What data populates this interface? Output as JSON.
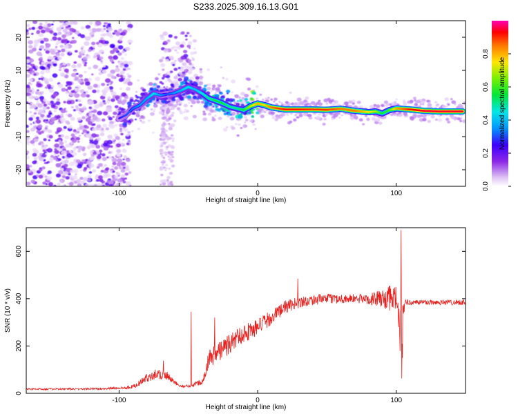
{
  "title": "S233.2025.309.16.13.G01",
  "colors": {
    "snr_line": "#e8201e",
    "frame": "#000000",
    "background": "#ffffff"
  },
  "chart_data": [
    {
      "type": "heatmap",
      "name": "spectrogram",
      "xlabel": "Height of straight line (km)",
      "ylabel": "Frequency (Hz)",
      "xlim": [
        -167,
        150
      ],
      "ylim": [
        -25,
        25
      ],
      "xticks": [
        -100,
        0,
        100
      ],
      "xtick_labels": [
        "-100",
        "0",
        "100"
      ],
      "yticks": [
        -20,
        -10,
        0,
        10,
        20
      ],
      "ytick_labels": [
        "-20",
        "-10",
        "0",
        "10",
        "20"
      ],
      "colorbar": {
        "label": "Normalized spectral amplitude",
        "range": [
          0,
          1
        ],
        "ticks": [
          0.0,
          0.2,
          0.4,
          0.6,
          0.8
        ],
        "tick_labels": [
          "0.0",
          "0.2",
          "0.4",
          "0.6",
          "0.8"
        ],
        "colormap": "rainbow (white-purple-blue-cyan-green-yellow-orange-red-magenta)"
      },
      "ridge": {
        "description": "dominant frequency track",
        "x": [
          -100,
          -95,
          -90,
          -85,
          -80,
          -75,
          -70,
          -65,
          -60,
          -55,
          -50,
          -45,
          -40,
          -35,
          -30,
          -25,
          -20,
          -15,
          -10,
          -5,
          0,
          5,
          10,
          20,
          30,
          40,
          50,
          60,
          70,
          80,
          85,
          90,
          95,
          100,
          110,
          120,
          130,
          140,
          148
        ],
        "y": [
          -4.5,
          -3.5,
          -1.5,
          -0.5,
          1.5,
          3.0,
          2.5,
          2.8,
          3.2,
          4.0,
          5.0,
          4.2,
          3.0,
          1.5,
          0.8,
          0.0,
          -1.0,
          -1.5,
          -2.0,
          -0.8,
          0.0,
          -0.5,
          -1.2,
          -1.8,
          -1.8,
          -1.8,
          -1.9,
          -1.6,
          -2.2,
          -2.6,
          -2.4,
          -3.0,
          -2.0,
          -1.5,
          -1.8,
          -2.2,
          -2.4,
          -2.4,
          -2.4
        ],
        "amplitude": [
          0.25,
          0.3,
          0.32,
          0.35,
          0.38,
          0.45,
          0.35,
          0.3,
          0.35,
          0.4,
          0.45,
          0.4,
          0.45,
          0.5,
          0.55,
          0.55,
          0.5,
          0.5,
          0.55,
          0.7,
          0.8,
          0.75,
          0.85,
          0.92,
          0.92,
          0.9,
          0.9,
          0.85,
          0.85,
          0.75,
          0.7,
          0.55,
          0.6,
          0.8,
          0.92,
          0.95,
          0.95,
          0.95,
          0.95
        ]
      }
    },
    {
      "type": "line",
      "name": "snr",
      "xlabel": "Height of straight line (km)",
      "ylabel": "SNR (10 * v/v)",
      "xlim": [
        -167,
        150
      ],
      "ylim": [
        0,
        700
      ],
      "xticks": [
        -100,
        0,
        100
      ],
      "xtick_labels": [
        "-100",
        "0",
        "100"
      ],
      "yticks": [
        0,
        200,
        400,
        600
      ],
      "ytick_labels": [
        "0",
        "200",
        "400",
        "600"
      ],
      "series": [
        {
          "name": "SNR",
          "x": [
            -167,
            -150,
            -130,
            -110,
            -100,
            -90,
            -85,
            -80,
            -75,
            -70,
            -65,
            -60,
            -55,
            -50,
            -45,
            -40,
            -37,
            -35,
            -30,
            -25,
            -20,
            -15,
            -10,
            -5,
            0,
            5,
            10,
            15,
            20,
            25,
            30,
            40,
            50,
            60,
            70,
            80,
            90,
            95,
            100,
            102,
            103,
            104,
            105,
            106,
            110,
            120,
            130,
            140,
            150
          ],
          "values": [
            18,
            18,
            18,
            20,
            22,
            28,
            45,
            65,
            80,
            82,
            70,
            45,
            30,
            30,
            40,
            50,
            110,
            150,
            170,
            190,
            210,
            235,
            255,
            265,
            280,
            300,
            320,
            345,
            365,
            375,
            385,
            395,
            400,
            400,
            400,
            398,
            400,
            400,
            400,
            300,
            250,
            200,
            340,
            380,
            385,
            385,
            385,
            385,
            385
          ],
          "noise": [
            4,
            4,
            4,
            5,
            5,
            8,
            12,
            18,
            22,
            25,
            20,
            10,
            6,
            6,
            10,
            14,
            30,
            40,
            45,
            45,
            45,
            40,
            40,
            40,
            35,
            35,
            30,
            30,
            28,
            25,
            25,
            22,
            20,
            20,
            20,
            22,
            40,
            55,
            60,
            120,
            140,
            150,
            60,
            20,
            12,
            12,
            12,
            12,
            12
          ],
          "peaks": [
            {
              "x": 103.5,
              "y": 690
            },
            {
              "x": 104.5,
              "y": 150
            },
            {
              "x": 29,
              "y": 485
            },
            {
              "x": -31,
              "y": 320
            },
            {
              "x": -48,
              "y": 345
            },
            {
              "x": -68,
              "y": 138
            }
          ]
        }
      ]
    }
  ]
}
